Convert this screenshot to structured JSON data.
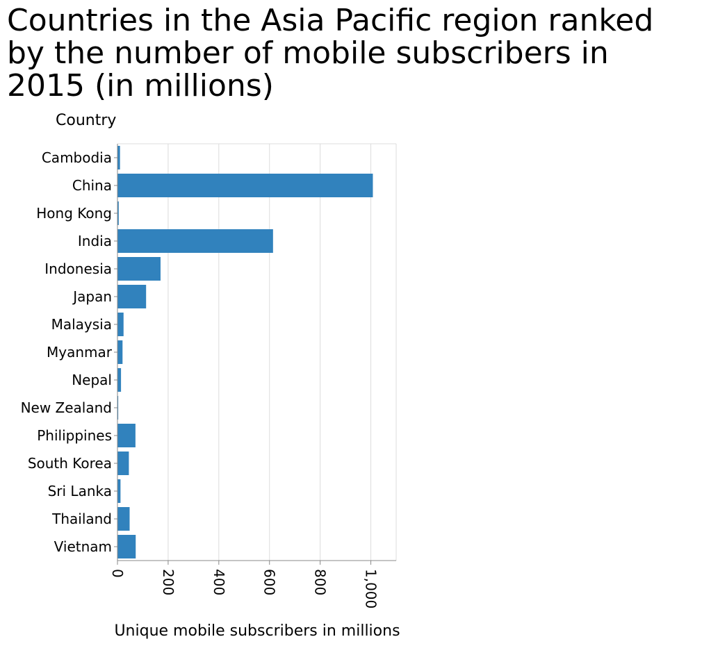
{
  "chart_data": {
    "type": "bar",
    "orientation": "horizontal",
    "title": "Countries in the Asia Pacific region ranked by the number of mobile subscribers in 2015 (in millions)",
    "ylabel": "Country",
    "xlabel": "Unique mobile subscribers in millions",
    "categories": [
      "Cambodia",
      "China",
      "Hong Kong",
      "India",
      "Indonesia",
      "Japan",
      "Malaysia",
      "Myanmar",
      "Nepal",
      "New Zealand",
      "Philippines",
      "South Korea",
      "Sri Lanka",
      "Thailand",
      "Vietnam"
    ],
    "values": [
      10,
      1008,
      5,
      614,
      170,
      113,
      24,
      20,
      14,
      3,
      71,
      45,
      12,
      48,
      72
    ],
    "xlim": [
      0,
      1100
    ],
    "xticks": [
      0,
      200,
      400,
      600,
      800,
      1000
    ],
    "xtick_labels": [
      "0",
      "200",
      "400",
      "600",
      "800",
      "1,000"
    ],
    "grid": true,
    "bar_color": "#3182bd"
  }
}
